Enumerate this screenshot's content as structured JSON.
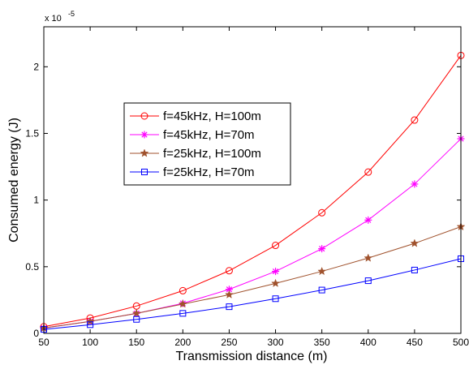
{
  "chart_data": {
    "type": "line",
    "xlabel": "Transmission distance (m)",
    "ylabel": "Consumed energy (J)",
    "y_multiplier": "x 10",
    "y_exponent": "-5",
    "xlim": [
      50,
      500
    ],
    "ylim": [
      0,
      2.3
    ],
    "xticks": [
      50,
      100,
      150,
      200,
      250,
      300,
      350,
      400,
      450,
      500
    ],
    "yticks": [
      0,
      0.5,
      1,
      1.5,
      2
    ],
    "ytick_labels": [
      "0",
      "0.5",
      "1",
      "1.5",
      "2"
    ],
    "grid": false,
    "legend_position": "upper-left-center",
    "x": [
      50,
      100,
      150,
      200,
      250,
      300,
      350,
      400,
      450,
      500
    ],
    "series": [
      {
        "name": "f=45kHz, H=100m",
        "color": "#ff0000",
        "marker": "circle",
        "values": [
          0.05,
          0.115,
          0.205,
          0.32,
          0.47,
          0.66,
          0.905,
          1.21,
          1.6,
          2.085
        ]
      },
      {
        "name": "f=45kHz, H=70m",
        "color": "#ff00ff",
        "marker": "asterisk",
        "values": [
          0.04,
          0.09,
          0.15,
          0.225,
          0.33,
          0.465,
          0.635,
          0.85,
          1.12,
          1.46
        ]
      },
      {
        "name": "f=25kHz, H=100m",
        "color": "#a0522d",
        "marker": "star",
        "values": [
          0.04,
          0.09,
          0.15,
          0.22,
          0.29,
          0.375,
          0.465,
          0.565,
          0.675,
          0.8
        ]
      },
      {
        "name": "f=25kHz, H=70m",
        "color": "#0000ff",
        "marker": "square",
        "values": [
          0.03,
          0.065,
          0.105,
          0.15,
          0.2,
          0.26,
          0.325,
          0.395,
          0.475,
          0.56
        ]
      }
    ]
  }
}
